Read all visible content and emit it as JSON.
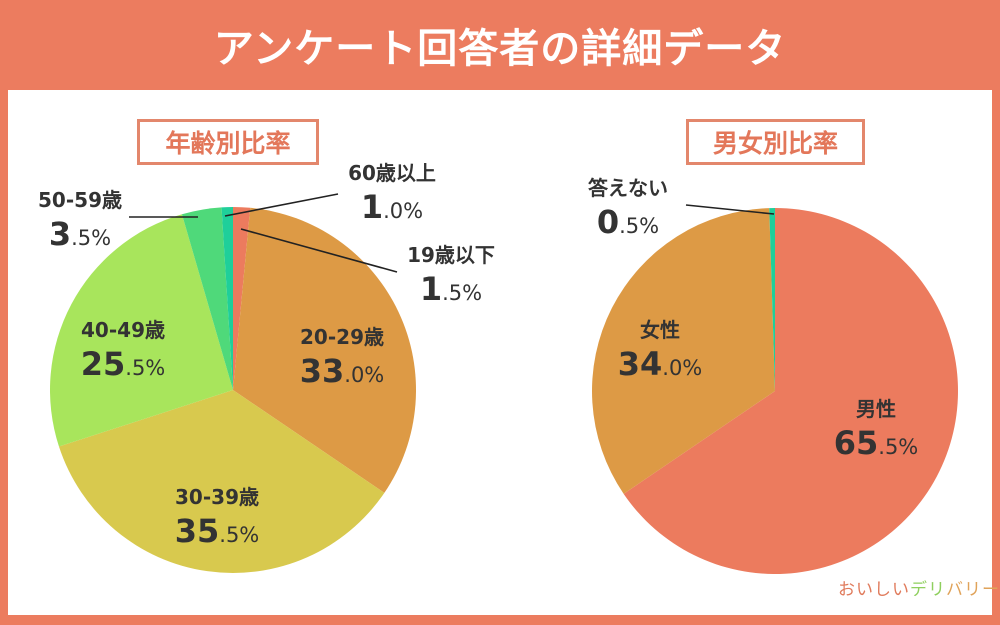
{
  "title": "アンケート回答者の詳細データ",
  "logo": {
    "part1": "おいしい",
    "part2": "デリ",
    "part3": "バリー"
  },
  "chart_data": [
    {
      "type": "pie",
      "title": "年齢別比率",
      "start": "top",
      "direction": "clockwise",
      "slices": [
        {
          "label": "19歳以下",
          "value": 1.5,
          "int": "1",
          "dec": ".5%",
          "color": "#ec7b5e"
        },
        {
          "label": "20-29歳",
          "value": 33.0,
          "int": "33",
          "dec": ".0%",
          "color": "#dd9a45"
        },
        {
          "label": "30-39歳",
          "value": 35.5,
          "int": "35",
          "dec": ".5%",
          "color": "#d8c94e"
        },
        {
          "label": "40-49歳",
          "value": 25.5,
          "int": "25",
          "dec": ".5%",
          "color": "#a8e55c"
        },
        {
          "label": "50-59歳",
          "value": 3.5,
          "int": "3",
          "dec": ".5%",
          "color": "#4fd97a"
        },
        {
          "label": "60歳以上",
          "value": 1.0,
          "int": "1",
          "dec": ".0%",
          "color": "#1fcf9a"
        }
      ]
    },
    {
      "type": "pie",
      "title": "男女別比率",
      "start": "top",
      "direction": "clockwise",
      "slices": [
        {
          "label": "男性",
          "value": 65.5,
          "int": "65",
          "dec": ".5%",
          "color": "#ec7b5e"
        },
        {
          "label": "女性",
          "value": 34.0,
          "int": "34",
          "dec": ".0%",
          "color": "#dd9a45"
        },
        {
          "label": "答えない",
          "value": 0.5,
          "int": "0",
          "dec": ".5%",
          "color": "#1fcf9a"
        }
      ]
    }
  ]
}
